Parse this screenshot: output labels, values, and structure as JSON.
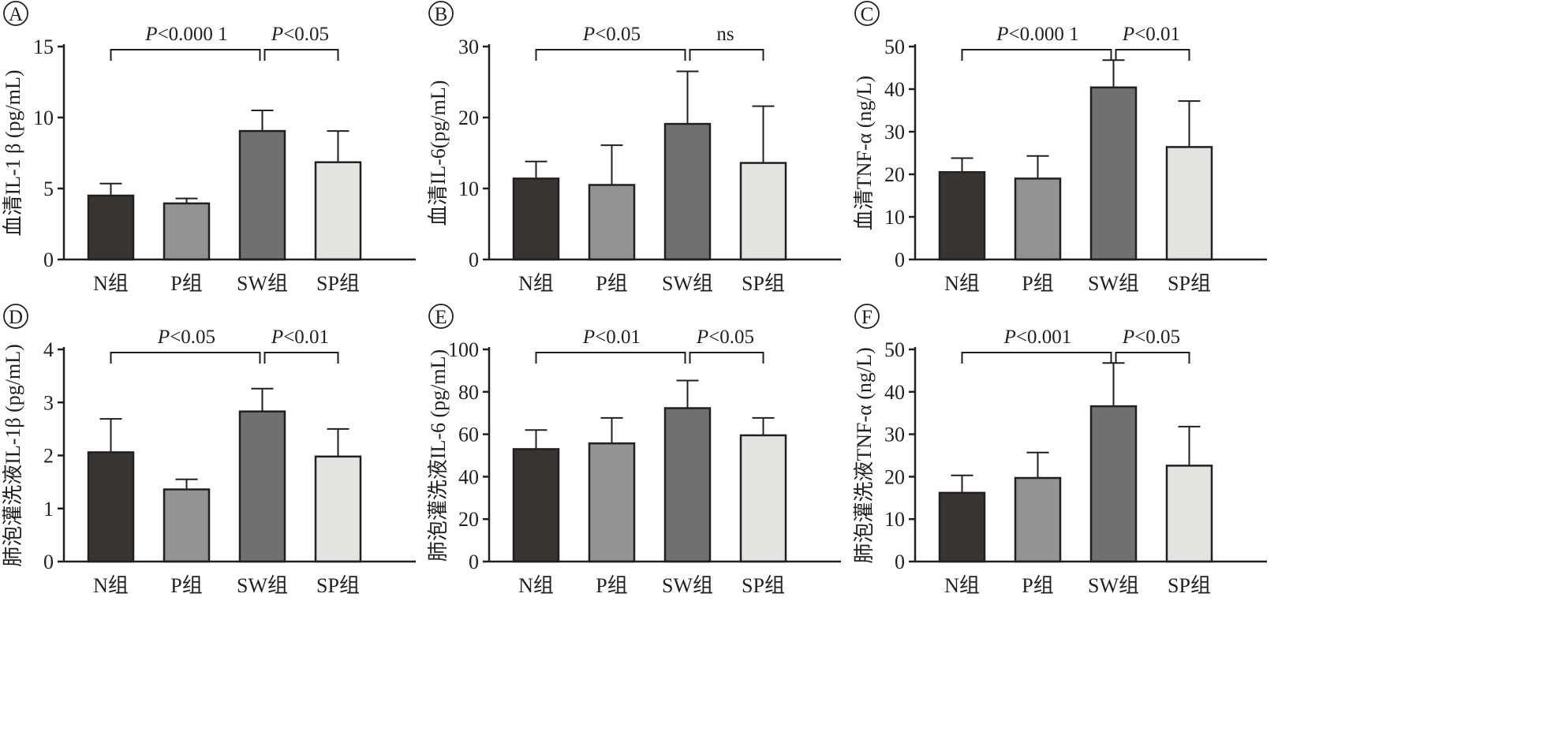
{
  "colors": {
    "N组": "#383432",
    "P组": "#939393",
    "SW组": "#707070",
    "SP组": "#e3e3e1",
    "ink": "#231f20"
  },
  "chart_data": [
    {
      "panel": "A",
      "type": "bar",
      "ylabel": "血清IL-1 β (pg/mL)",
      "categories": [
        "N组",
        "P组",
        "SW组",
        "SP组"
      ],
      "values": [
        4.5,
        3.95,
        9.05,
        6.85
      ],
      "errors": [
        0.85,
        0.35,
        1.45,
        2.2
      ],
      "ylim": [
        0,
        15
      ],
      "yticks": [
        0,
        5,
        10,
        15
      ],
      "comparisons": [
        {
          "from": 0,
          "to": 2,
          "label": "<0.000 1",
          "prefix": "P"
        },
        {
          "from": 2,
          "to": 3,
          "label": "<0.05",
          "prefix": "P"
        }
      ]
    },
    {
      "panel": "B",
      "type": "bar",
      "ylabel": "血清IL-6(pg/mL)",
      "categories": [
        "N组",
        "P组",
        "SW组",
        "SP组"
      ],
      "values": [
        11.4,
        10.5,
        19.1,
        13.6
      ],
      "errors": [
        2.4,
        5.6,
        7.4,
        8.0
      ],
      "ylim": [
        0,
        30
      ],
      "yticks": [
        0,
        10,
        20,
        30
      ],
      "comparisons": [
        {
          "from": 0,
          "to": 2,
          "label": "<0.05",
          "prefix": "P"
        },
        {
          "from": 2,
          "to": 3,
          "label": "ns",
          "prefix": ""
        }
      ]
    },
    {
      "panel": "C",
      "type": "bar",
      "ylabel": "血清TNF-α (ng/L)",
      "categories": [
        "N组",
        "P组",
        "SW组",
        "SP组"
      ],
      "values": [
        20.5,
        19.0,
        40.4,
        26.4
      ],
      "errors": [
        3.3,
        5.3,
        6.4,
        10.8
      ],
      "ylim": [
        0,
        50
      ],
      "yticks": [
        0,
        10,
        20,
        30,
        40,
        50
      ],
      "comparisons": [
        {
          "from": 0,
          "to": 2,
          "label": "<0.000 1",
          "prefix": "P"
        },
        {
          "from": 2,
          "to": 3,
          "label": "<0.01",
          "prefix": "P"
        }
      ]
    },
    {
      "panel": "D",
      "type": "bar",
      "ylabel": "肺泡灌洗液IL-1β (pg/mL)",
      "categories": [
        "N组",
        "P组",
        "SW组",
        "SP组"
      ],
      "values": [
        2.06,
        1.36,
        2.83,
        1.98
      ],
      "errors": [
        0.63,
        0.19,
        0.43,
        0.52
      ],
      "ylim": [
        0,
        4
      ],
      "yticks": [
        0,
        1,
        2,
        3,
        4
      ],
      "comparisons": [
        {
          "from": 0,
          "to": 2,
          "label": "<0.05",
          "prefix": "P"
        },
        {
          "from": 2,
          "to": 3,
          "label": "<0.01",
          "prefix": "P"
        }
      ]
    },
    {
      "panel": "E",
      "type": "bar",
      "ylabel": "肺泡灌洗液IL-6 (pg/mL)",
      "categories": [
        "N组",
        "P组",
        "SW组",
        "SP组"
      ],
      "values": [
        53.0,
        55.7,
        72.3,
        59.5
      ],
      "errors": [
        9.0,
        12.0,
        13.0,
        8.2
      ],
      "ylim": [
        0,
        100
      ],
      "yticks": [
        0,
        20,
        40,
        60,
        80,
        100
      ],
      "comparisons": [
        {
          "from": 0,
          "to": 2,
          "label": "<0.01",
          "prefix": "P"
        },
        {
          "from": 2,
          "to": 3,
          "label": "<0.05",
          "prefix": "P"
        }
      ]
    },
    {
      "panel": "F",
      "type": "bar",
      "ylabel": "肺泡灌洗液TNF-α (ng/L)",
      "categories": [
        "N组",
        "P组",
        "SW组",
        "SP组"
      ],
      "values": [
        16.2,
        19.7,
        36.6,
        22.6
      ],
      "errors": [
        4.1,
        6.0,
        10.2,
        9.2
      ],
      "ylim": [
        0,
        50
      ],
      "yticks": [
        0,
        10,
        20,
        30,
        40,
        50
      ],
      "comparisons": [
        {
          "from": 0,
          "to": 2,
          "label": "<0.001",
          "prefix": "P"
        },
        {
          "from": 2,
          "to": 3,
          "label": "<0.05",
          "prefix": "P"
        }
      ]
    }
  ]
}
